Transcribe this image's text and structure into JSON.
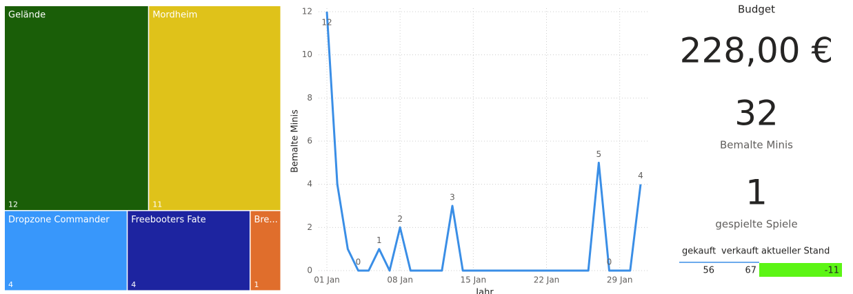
{
  "chart_data": [
    {
      "type": "treemap",
      "categories": [
        "Gelände",
        "Mordheim",
        "Dropzone Commander",
        "Freebooters Fate",
        "Bre..."
      ],
      "values": [
        12,
        11,
        4,
        4,
        1
      ],
      "colors": [
        "#1a5e08",
        "#dfc21a",
        "#3897fb",
        "#1d24a0",
        "#e06e2c"
      ]
    },
    {
      "type": "line",
      "x_label": "Jahr",
      "y_label": "Bemalte Minis",
      "categories": [
        "01 Jan",
        "02 Jan",
        "03 Jan",
        "04 Jan",
        "05 Jan",
        "06 Jan",
        "07 Jan",
        "08 Jan",
        "09 Jan",
        "10 Jan",
        "11 Jan",
        "12 Jan",
        "13 Jan",
        "14 Jan",
        "15 Jan",
        "16 Jan",
        "17 Jan",
        "18 Jan",
        "19 Jan",
        "20 Jan",
        "21 Jan",
        "22 Jan",
        "23 Jan",
        "24 Jan",
        "25 Jan",
        "26 Jan",
        "27 Jan",
        "28 Jan",
        "29 Jan",
        "30 Jan",
        "31 Jan"
      ],
      "values": [
        12,
        4,
        1,
        0,
        0,
        1,
        0,
        2,
        0,
        0,
        0,
        0,
        3,
        0,
        0,
        0,
        0,
        0,
        0,
        0,
        0,
        0,
        0,
        0,
        0,
        0,
        5,
        0,
        0,
        0,
        4
      ],
      "value_labels": [
        "12",
        null,
        null,
        "0",
        null,
        "1",
        null,
        "2",
        null,
        null,
        null,
        null,
        "3",
        null,
        null,
        null,
        null,
        null,
        null,
        null,
        null,
        null,
        null,
        null,
        null,
        null,
        "5",
        "0",
        null,
        null,
        "4"
      ],
      "color": "#3a8ee6",
      "ylim": [
        0,
        12
      ],
      "yticks": [
        0,
        2,
        4,
        6,
        8,
        10,
        12
      ],
      "grid": true
    }
  ],
  "cards": [
    {
      "title": "Budget",
      "value": "228,00 €"
    },
    {
      "value": 32,
      "label": "Bemalte Minis"
    },
    {
      "value": 1,
      "label": "gespielte Spiele"
    }
  ],
  "table": {
    "headers": [
      "gekauft",
      "verkauft",
      "aktueller Stand"
    ],
    "rows": [
      [
        56,
        67,
        -11
      ]
    ]
  }
}
